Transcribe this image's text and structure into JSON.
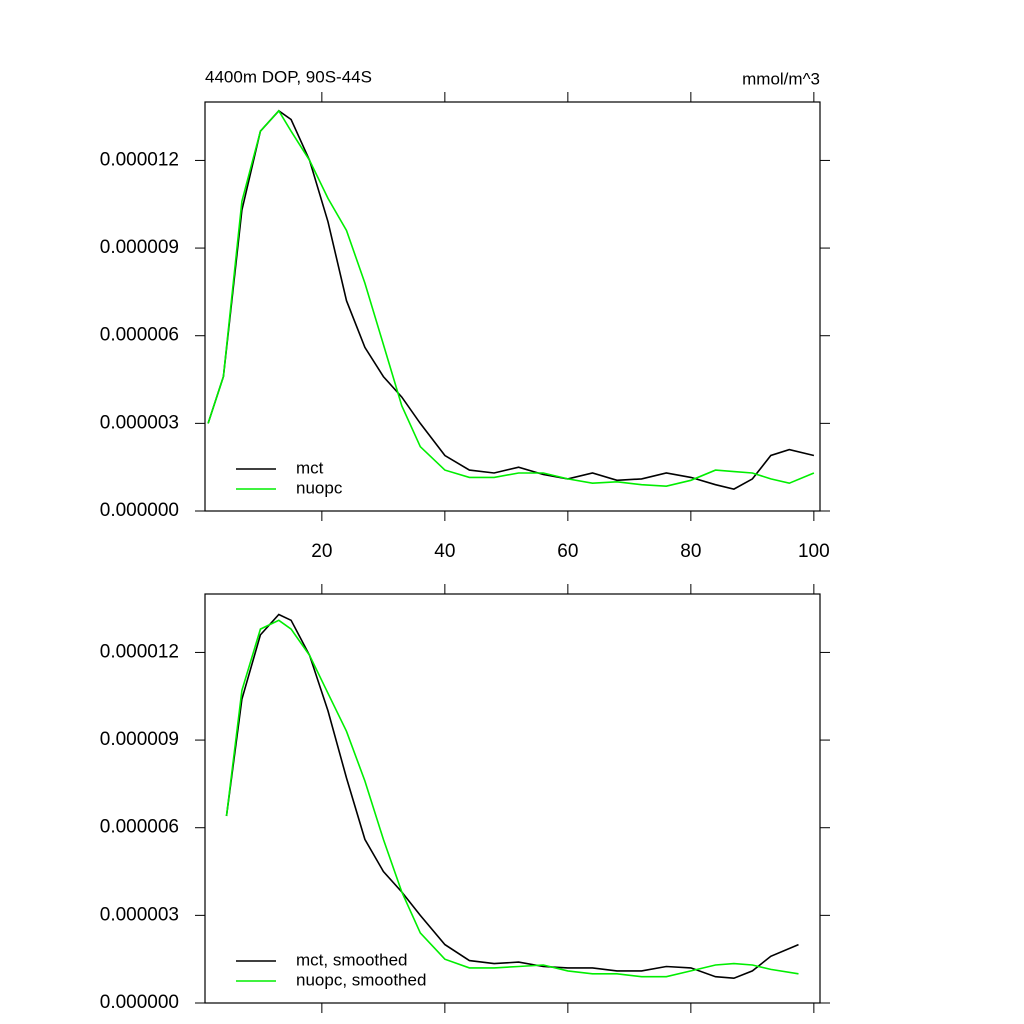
{
  "chart_data": [
    {
      "type": "line",
      "title": "4400m DOP, 90S-44S",
      "units": "mmol/m^3",
      "x": [
        1.5,
        4,
        7,
        10,
        13,
        15,
        18,
        21,
        24,
        27,
        30,
        33,
        36,
        40,
        44,
        48,
        52,
        56,
        60,
        64,
        68,
        72,
        76,
        80,
        84,
        87,
        90,
        93,
        96,
        100
      ],
      "series": [
        {
          "name": "mct",
          "color": "#000000",
          "values": [
            3e-06,
            4.6e-06,
            1.03e-05,
            1.3e-05,
            1.37e-05,
            1.34e-05,
            1.2e-05,
            9.9e-06,
            7.2e-06,
            5.6e-06,
            4.6e-06,
            3.9e-06,
            3e-06,
            1.9e-06,
            1.4e-06,
            1.3e-06,
            1.5e-06,
            1.25e-06,
            1.1e-06,
            1.3e-06,
            1.05e-06,
            1.1e-06,
            1.3e-06,
            1.15e-06,
            9e-07,
            7.5e-07,
            1.1e-06,
            1.9e-06,
            2.1e-06,
            1.9e-06
          ]
        },
        {
          "name": "nuopc",
          "color": "#00ee00",
          "values": [
            3e-06,
            4.6e-06,
            1.06e-05,
            1.3e-05,
            1.37e-05,
            1.3e-05,
            1.2e-05,
            1.07e-05,
            9.6e-06,
            7.8e-06,
            5.7e-06,
            3.6e-06,
            2.2e-06,
            1.4e-06,
            1.15e-06,
            1.15e-06,
            1.3e-06,
            1.3e-06,
            1.1e-06,
            9.5e-07,
            1e-06,
            9e-07,
            8.5e-07,
            1.05e-06,
            1.4e-06,
            1.35e-06,
            1.3e-06,
            1.1e-06,
            9.5e-07,
            1.3e-06
          ]
        }
      ],
      "xlim": [
        1,
        101
      ],
      "xticks": [
        20,
        40,
        60,
        80,
        100
      ],
      "ylim": [
        0,
        1.4e-05
      ],
      "yticks": [
        {
          "value": 0,
          "label": "0.000000"
        },
        {
          "value": 3e-06,
          "label": "0.000003"
        },
        {
          "value": 6e-06,
          "label": "0.000006"
        },
        {
          "value": 9e-06,
          "label": "0.000009"
        },
        {
          "value": 1.2e-05,
          "label": "0.000012"
        }
      ],
      "legend": "lower left"
    },
    {
      "type": "line",
      "x": [
        4.5,
        7,
        10,
        13,
        15,
        18,
        21,
        24,
        27,
        30,
        33,
        36,
        40,
        44,
        48,
        52,
        56,
        60,
        64,
        68,
        72,
        76,
        80,
        84,
        87,
        90,
        93,
        97.5
      ],
      "series": [
        {
          "name": "mct, smoothed",
          "color": "#000000",
          "values": [
            6.4e-06,
            1.04e-05,
            1.26e-05,
            1.33e-05,
            1.31e-05,
            1.19e-05,
            1e-05,
            7.7e-06,
            5.6e-06,
            4.5e-06,
            3.8e-06,
            3e-06,
            2e-06,
            1.45e-06,
            1.35e-06,
            1.4e-06,
            1.25e-06,
            1.2e-06,
            1.2e-06,
            1.1e-06,
            1.1e-06,
            1.25e-06,
            1.2e-06,
            9e-07,
            8.5e-07,
            1.1e-06,
            1.6e-06,
            2e-06
          ]
        },
        {
          "name": "nuopc, smoothed",
          "color": "#00ee00",
          "values": [
            6.4e-06,
            1.07e-05,
            1.28e-05,
            1.31e-05,
            1.28e-05,
            1.19e-05,
            1.06e-05,
            9.3e-06,
            7.6e-06,
            5.6e-06,
            3.8e-06,
            2.4e-06,
            1.5e-06,
            1.2e-06,
            1.2e-06,
            1.25e-06,
            1.3e-06,
            1.1e-06,
            1e-06,
            1e-06,
            9e-07,
            9e-07,
            1.1e-06,
            1.3e-06,
            1.35e-06,
            1.3e-06,
            1.15e-06,
            1e-06
          ]
        }
      ],
      "xlim": [
        1,
        101
      ],
      "xticks": [
        20,
        40,
        60,
        80,
        100
      ],
      "ylim": [
        0,
        1.4e-05
      ],
      "yticks": [
        {
          "value": 0,
          "label": "0.000000"
        },
        {
          "value": 3e-06,
          "label": "0.000003"
        },
        {
          "value": 6e-06,
          "label": "0.000006"
        },
        {
          "value": 9e-06,
          "label": "0.000009"
        },
        {
          "value": 1.2e-05,
          "label": "0.000012"
        }
      ],
      "legend": "lower left"
    }
  ]
}
